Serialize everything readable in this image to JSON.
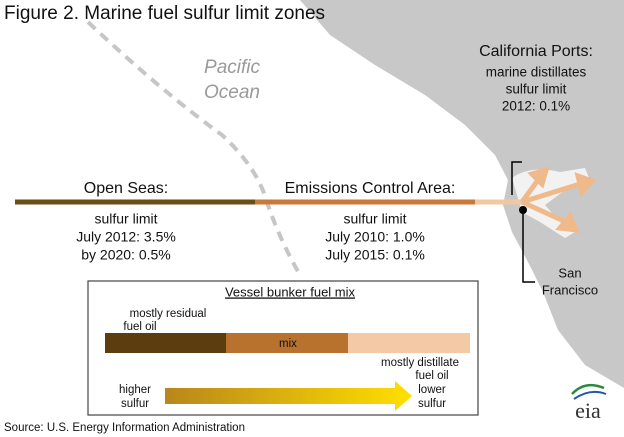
{
  "title": "Figure 2. Marine fuel sulfur limit zones",
  "ocean_label": [
    "Pacific",
    "Ocean"
  ],
  "california_ports": [
    "California Ports:",
    "marine distillates",
    "sulfur limit",
    "2012: 0.1%"
  ],
  "open_seas": {
    "heading": "Open Seas:",
    "lines": [
      "sulfur limit",
      "July 2012: 3.5%",
      "by 2020: 0.5%"
    ]
  },
  "emissions_control_area": {
    "heading": "Emissions Control Area:",
    "lines": [
      "sulfur limit",
      "July 2010: 1.0%",
      "July 2015: 0.1%"
    ]
  },
  "city_label": [
    "San",
    "Francisco"
  ],
  "legend": {
    "title": "Vessel bunker fuel mix",
    "residual": [
      "mostly  residual",
      "fuel oil"
    ],
    "mix": "mix",
    "distillate": [
      "mostly distillate",
      "fuel oil"
    ],
    "higher": [
      "higher",
      "sulfur"
    ],
    "lower": [
      "lower",
      "sulfur"
    ]
  },
  "logo": "eia",
  "source": "Source: U.S. Energy Information Administration"
}
